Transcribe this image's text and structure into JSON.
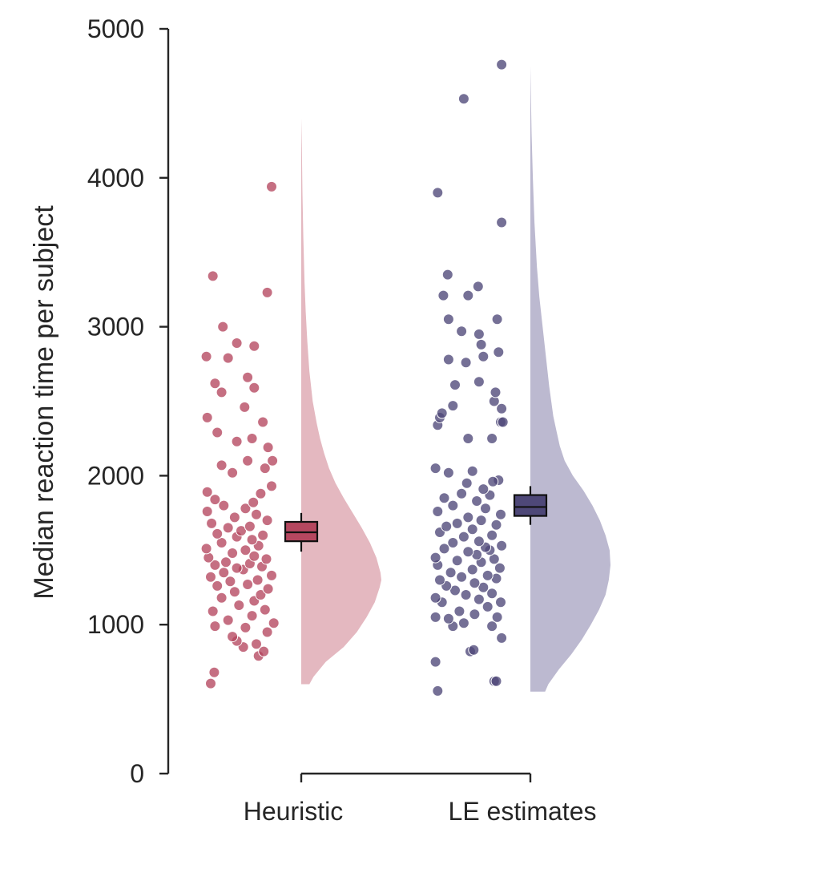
{
  "chart_data": {
    "type": "raincloud",
    "title": "",
    "xlabel": "",
    "ylabel": "Median reaction time per subject",
    "ylim": [
      0,
      5000
    ],
    "yticks": [
      0,
      1000,
      2000,
      3000,
      4000,
      5000
    ],
    "grid": false,
    "categories": [
      "Heuristic",
      "LE estimates"
    ],
    "series": [
      {
        "category": "Heuristic",
        "color": "#b5475f",
        "cloud_color": "#e4b8c0",
        "box": {
          "whisker_low": 1490,
          "q1": 1560,
          "median": 1620,
          "q3": 1690,
          "whisker_high": 1750
        },
        "density": {
          "y": [
            600,
            650,
            750,
            850,
            950,
            1050,
            1150,
            1250,
            1300,
            1350,
            1450,
            1550,
            1650,
            1750,
            1850,
            1950,
            2050,
            2150,
            2250,
            2350,
            2500,
            2700,
            2900,
            3100,
            3300,
            3600,
            3900,
            4200,
            4400
          ],
          "w": [
            0.1,
            0.15,
            0.3,
            0.52,
            0.68,
            0.8,
            0.9,
            0.96,
            0.98,
            0.97,
            0.92,
            0.84,
            0.74,
            0.63,
            0.52,
            0.42,
            0.34,
            0.28,
            0.23,
            0.19,
            0.14,
            0.1,
            0.075,
            0.055,
            0.04,
            0.025,
            0.015,
            0.008,
            0
          ]
        },
        "points": [
          {
            "x": -0.7,
            "y": 605
          },
          {
            "x": -0.62,
            "y": 680
          },
          {
            "x": 0.4,
            "y": 790
          },
          {
            "x": 0.52,
            "y": 820
          },
          {
            "x": 0.05,
            "y": 850
          },
          {
            "x": -0.1,
            "y": 890
          },
          {
            "x": 0.35,
            "y": 870
          },
          {
            "x": -0.2,
            "y": 920
          },
          {
            "x": 0.6,
            "y": 950
          },
          {
            "x": -0.6,
            "y": 990
          },
          {
            "x": 0.1,
            "y": 980
          },
          {
            "x": 0.75,
            "y": 1010
          },
          {
            "x": -0.3,
            "y": 1030
          },
          {
            "x": 0.25,
            "y": 1060
          },
          {
            "x": -0.65,
            "y": 1090
          },
          {
            "x": 0.55,
            "y": 1100
          },
          {
            "x": -0.05,
            "y": 1130
          },
          {
            "x": 0.3,
            "y": 1160
          },
          {
            "x": -0.45,
            "y": 1180
          },
          {
            "x": 0.45,
            "y": 1200
          },
          {
            "x": -0.15,
            "y": 1220
          },
          {
            "x": 0.62,
            "y": 1240
          },
          {
            "x": -0.55,
            "y": 1260
          },
          {
            "x": 0.15,
            "y": 1270
          },
          {
            "x": -0.25,
            "y": 1290
          },
          {
            "x": 0.38,
            "y": 1300
          },
          {
            "x": -0.7,
            "y": 1320
          },
          {
            "x": 0.7,
            "y": 1330
          },
          {
            "x": -0.4,
            "y": 1350
          },
          {
            "x": 0.05,
            "y": 1370
          },
          {
            "x": -0.1,
            "y": 1380
          },
          {
            "x": 0.48,
            "y": 1390
          },
          {
            "x": -0.6,
            "y": 1400
          },
          {
            "x": 0.2,
            "y": 1410
          },
          {
            "x": -0.35,
            "y": 1420
          },
          {
            "x": 0.58,
            "y": 1440
          },
          {
            "x": -0.75,
            "y": 1450
          },
          {
            "x": 0.3,
            "y": 1460
          },
          {
            "x": -0.2,
            "y": 1480
          },
          {
            "x": 0.1,
            "y": 1500
          },
          {
            "x": -0.8,
            "y": 1510
          },
          {
            "x": 0.4,
            "y": 1530
          },
          {
            "x": -0.45,
            "y": 1550
          },
          {
            "x": 0.25,
            "y": 1570
          },
          {
            "x": -0.1,
            "y": 1590
          },
          {
            "x": 0.5,
            "y": 1600
          },
          {
            "x": -0.55,
            "y": 1610
          },
          {
            "x": 0.0,
            "y": 1630
          },
          {
            "x": -0.3,
            "y": 1650
          },
          {
            "x": 0.2,
            "y": 1660
          },
          {
            "x": -0.68,
            "y": 1680
          },
          {
            "x": 0.6,
            "y": 1700
          },
          {
            "x": -0.15,
            "y": 1720
          },
          {
            "x": 0.35,
            "y": 1740
          },
          {
            "x": -0.78,
            "y": 1760
          },
          {
            "x": 0.1,
            "y": 1780
          },
          {
            "x": -0.4,
            "y": 1800
          },
          {
            "x": 0.28,
            "y": 1820
          },
          {
            "x": -0.6,
            "y": 1840
          },
          {
            "x": 0.45,
            "y": 1880
          },
          {
            "x": -0.78,
            "y": 1890
          },
          {
            "x": 0.7,
            "y": 1930
          },
          {
            "x": -0.2,
            "y": 2020
          },
          {
            "x": 0.55,
            "y": 2050
          },
          {
            "x": -0.45,
            "y": 2070
          },
          {
            "x": 0.15,
            "y": 2100
          },
          {
            "x": 0.72,
            "y": 2100
          },
          {
            "x": 0.62,
            "y": 2190
          },
          {
            "x": -0.1,
            "y": 2230
          },
          {
            "x": 0.25,
            "y": 2250
          },
          {
            "x": -0.55,
            "y": 2290
          },
          {
            "x": 0.5,
            "y": 2360
          },
          {
            "x": -0.78,
            "y": 2390
          },
          {
            "x": 0.08,
            "y": 2460
          },
          {
            "x": 0.3,
            "y": 2590
          },
          {
            "x": -0.45,
            "y": 2560
          },
          {
            "x": -0.6,
            "y": 2620
          },
          {
            "x": 0.15,
            "y": 2660
          },
          {
            "x": -0.8,
            "y": 2800
          },
          {
            "x": -0.3,
            "y": 2790
          },
          {
            "x": 0.3,
            "y": 2870
          },
          {
            "x": -0.1,
            "y": 2890
          },
          {
            "x": -0.42,
            "y": 3000
          },
          {
            "x": 0.6,
            "y": 3230
          },
          {
            "x": -0.65,
            "y": 3340
          },
          {
            "x": 0.7,
            "y": 3940
          }
        ]
      },
      {
        "category": "LE estimates",
        "color": "#4e4878",
        "cloud_color": "#bcb9d0",
        "box": {
          "whisker_low": 1670,
          "q1": 1730,
          "median": 1790,
          "q3": 1870,
          "whisker_high": 1930
        },
        "density": {
          "y": [
            550,
            600,
            700,
            800,
            900,
            1000,
            1100,
            1200,
            1300,
            1400,
            1500,
            1600,
            1700,
            1800,
            1900,
            2000,
            2100,
            2200,
            2300,
            2400,
            2600,
            2800,
            3000,
            3200,
            3400,
            3700,
            4000,
            4300,
            4600,
            4750
          ],
          "w": [
            0.18,
            0.22,
            0.35,
            0.5,
            0.63,
            0.74,
            0.84,
            0.92,
            0.96,
            0.98,
            0.97,
            0.92,
            0.85,
            0.76,
            0.65,
            0.52,
            0.42,
            0.36,
            0.32,
            0.28,
            0.23,
            0.19,
            0.15,
            0.11,
            0.08,
            0.05,
            0.03,
            0.015,
            0.005,
            0
          ]
        },
        "points": [
          {
            "x": -0.75,
            "y": 555
          },
          {
            "x": 0.55,
            "y": 620
          },
          {
            "x": 0.6,
            "y": 620
          },
          {
            "x": -0.8,
            "y": 750
          },
          {
            "x": 0.0,
            "y": 820
          },
          {
            "x": 0.08,
            "y": 830
          },
          {
            "x": 0.72,
            "y": 910
          },
          {
            "x": -0.4,
            "y": 990
          },
          {
            "x": 0.5,
            "y": 990
          },
          {
            "x": -0.15,
            "y": 1010
          },
          {
            "x": -0.5,
            "y": 1040
          },
          {
            "x": 0.62,
            "y": 1050
          },
          {
            "x": -0.8,
            "y": 1050
          },
          {
            "x": 0.1,
            "y": 1070
          },
          {
            "x": -0.25,
            "y": 1090
          },
          {
            "x": 0.4,
            "y": 1120
          },
          {
            "x": -0.65,
            "y": 1150
          },
          {
            "x": 0.7,
            "y": 1150
          },
          {
            "x": 0.2,
            "y": 1170
          },
          {
            "x": -0.8,
            "y": 1180
          },
          {
            "x": -0.1,
            "y": 1200
          },
          {
            "x": 0.5,
            "y": 1210
          },
          {
            "x": -0.35,
            "y": 1230
          },
          {
            "x": 0.3,
            "y": 1250
          },
          {
            "x": -0.55,
            "y": 1260
          },
          {
            "x": 0.1,
            "y": 1280
          },
          {
            "x": -0.7,
            "y": 1300
          },
          {
            "x": 0.6,
            "y": 1310
          },
          {
            "x": -0.2,
            "y": 1320
          },
          {
            "x": 0.4,
            "y": 1330
          },
          {
            "x": -0.45,
            "y": 1350
          },
          {
            "x": 0.05,
            "y": 1370
          },
          {
            "x": 0.68,
            "y": 1380
          },
          {
            "x": -0.75,
            "y": 1400
          },
          {
            "x": 0.25,
            "y": 1420
          },
          {
            "x": -0.3,
            "y": 1430
          },
          {
            "x": 0.55,
            "y": 1440
          },
          {
            "x": -0.8,
            "y": 1450
          },
          {
            "x": 0.15,
            "y": 1470
          },
          {
            "x": -0.05,
            "y": 1490
          },
          {
            "x": 0.45,
            "y": 1500
          },
          {
            "x": -0.6,
            "y": 1510
          },
          {
            "x": 0.35,
            "y": 1520
          },
          {
            "x": 0.72,
            "y": 1530
          },
          {
            "x": -0.4,
            "y": 1550
          },
          {
            "x": 0.2,
            "y": 1560
          },
          {
            "x": -0.15,
            "y": 1590
          },
          {
            "x": 0.5,
            "y": 1600
          },
          {
            "x": -0.7,
            "y": 1620
          },
          {
            "x": 0.05,
            "y": 1640
          },
          {
            "x": -0.55,
            "y": 1660
          },
          {
            "x": 0.6,
            "y": 1670
          },
          {
            "x": -0.3,
            "y": 1680
          },
          {
            "x": 0.25,
            "y": 1700
          },
          {
            "x": -0.05,
            "y": 1720
          },
          {
            "x": 0.7,
            "y": 1740
          },
          {
            "x": -0.75,
            "y": 1760
          },
          {
            "x": 0.35,
            "y": 1780
          },
          {
            "x": -0.4,
            "y": 1800
          },
          {
            "x": 0.15,
            "y": 1830
          },
          {
            "x": -0.6,
            "y": 1850
          },
          {
            "x": 0.45,
            "y": 1870
          },
          {
            "x": -0.2,
            "y": 1880
          },
          {
            "x": 0.3,
            "y": 1910
          },
          {
            "x": -0.08,
            "y": 1950
          },
          {
            "x": 0.65,
            "y": 1970
          },
          {
            "x": 0.52,
            "y": 1960
          },
          {
            "x": -0.5,
            "y": 2020
          },
          {
            "x": 0.05,
            "y": 2030
          },
          {
            "x": -0.8,
            "y": 2050
          },
          {
            "x": -0.05,
            "y": 2250
          },
          {
            "x": 0.5,
            "y": 2250
          },
          {
            "x": -0.75,
            "y": 2340
          },
          {
            "x": 0.7,
            "y": 2360
          },
          {
            "x": 0.75,
            "y": 2360
          },
          {
            "x": -0.7,
            "y": 2390
          },
          {
            "x": -0.65,
            "y": 2420
          },
          {
            "x": 0.72,
            "y": 2450
          },
          {
            "x": -0.4,
            "y": 2470
          },
          {
            "x": 0.55,
            "y": 2500
          },
          {
            "x": 0.58,
            "y": 2560
          },
          {
            "x": -0.35,
            "y": 2610
          },
          {
            "x": 0.2,
            "y": 2630
          },
          {
            "x": -0.1,
            "y": 2760
          },
          {
            "x": -0.5,
            "y": 2780
          },
          {
            "x": 0.3,
            "y": 2800
          },
          {
            "x": 0.65,
            "y": 2830
          },
          {
            "x": 0.25,
            "y": 2880
          },
          {
            "x": 0.2,
            "y": 2950
          },
          {
            "x": -0.2,
            "y": 2970
          },
          {
            "x": 0.62,
            "y": 3050
          },
          {
            "x": -0.5,
            "y": 3050
          },
          {
            "x": -0.05,
            "y": 3210
          },
          {
            "x": -0.62,
            "y": 3210
          },
          {
            "x": 0.18,
            "y": 3270
          },
          {
            "x": -0.52,
            "y": 3350
          },
          {
            "x": 0.72,
            "y": 3700
          },
          {
            "x": -0.75,
            "y": 3900
          },
          {
            "x": -0.15,
            "y": 4530
          },
          {
            "x": 0.72,
            "y": 4760
          }
        ]
      }
    ]
  }
}
